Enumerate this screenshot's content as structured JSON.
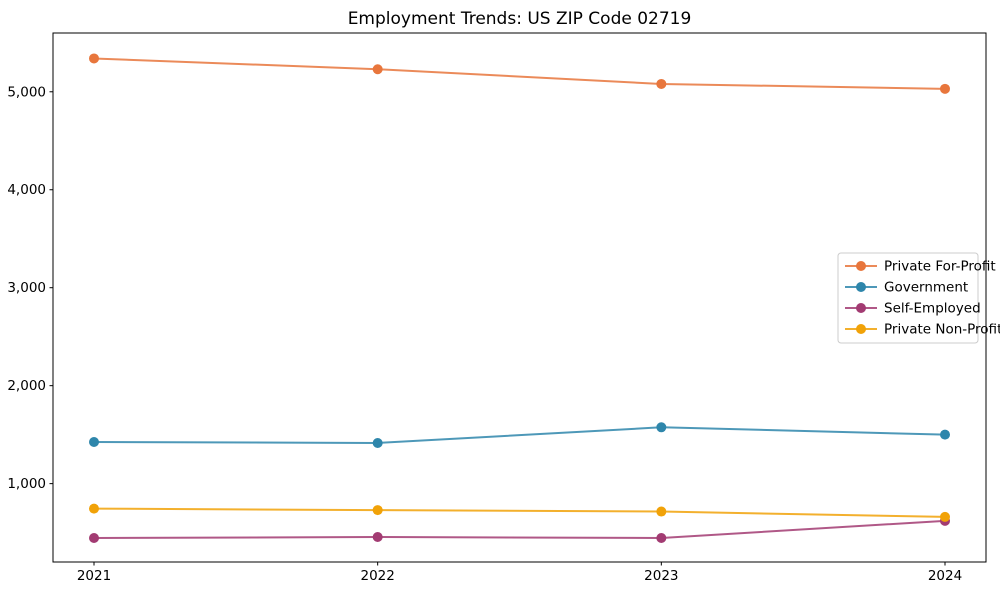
{
  "figure": {
    "background": "#ffffff"
  },
  "chart_data": {
    "type": "line",
    "title": "Employment Trends: US ZIP Code 02719",
    "categories": [
      "2021",
      "2022",
      "2023",
      "2024"
    ],
    "series": [
      {
        "name": "Private For-Profit",
        "color": "#E8763C",
        "marker": "circle",
        "values": [
          5340,
          5230,
          5080,
          5030
        ]
      },
      {
        "name": "Government",
        "color": "#2E86AB",
        "marker": "circle",
        "values": [
          1425,
          1415,
          1575,
          1500
        ]
      },
      {
        "name": "Self-Employed",
        "color": "#A23B72",
        "marker": "circle",
        "values": [
          445,
          455,
          445,
          620
        ]
      },
      {
        "name": "Private Non-Profit",
        "color": "#F1A208",
        "marker": "circle",
        "values": [
          745,
          730,
          715,
          660
        ]
      }
    ],
    "xlabel": "",
    "ylabel": "",
    "ylim": [
      200,
      5600
    ],
    "yticks": [
      1000,
      2000,
      3000,
      4000,
      5000
    ],
    "ytick_labels": [
      "1,000",
      "2,000",
      "3,000",
      "4,000",
      "5,000"
    ],
    "grid": false,
    "legend": {
      "position": "middle-right",
      "entries": [
        "Private For-Profit",
        "Government",
        "Self-Employed",
        "Private Non-Profit"
      ],
      "border_color": "#cccccc",
      "background": "#ffffff"
    },
    "axis_color": "#000000"
  }
}
